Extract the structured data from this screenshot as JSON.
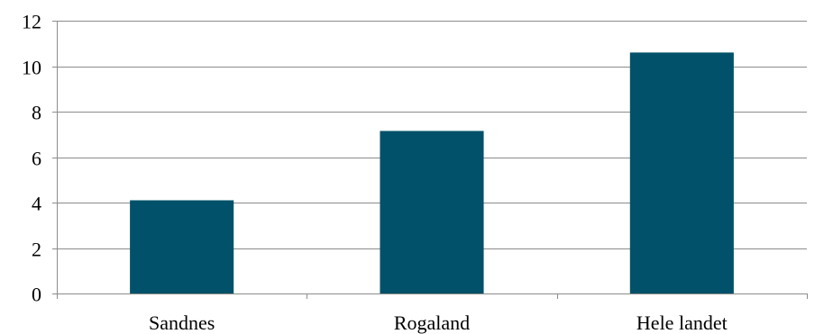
{
  "chart_data": {
    "type": "bar",
    "categories": [
      "Sandnes",
      "Rogaland",
      "Hele landet"
    ],
    "values": [
      4.1,
      7.15,
      10.6
    ],
    "title": "",
    "xlabel": "",
    "ylabel": "",
    "ylim": [
      0,
      12
    ],
    "yticks": [
      0,
      2,
      4,
      6,
      8,
      10,
      12
    ],
    "grid": true,
    "legend": "none",
    "bar_color": "#005169",
    "grid_color": "#8c8c8c"
  }
}
